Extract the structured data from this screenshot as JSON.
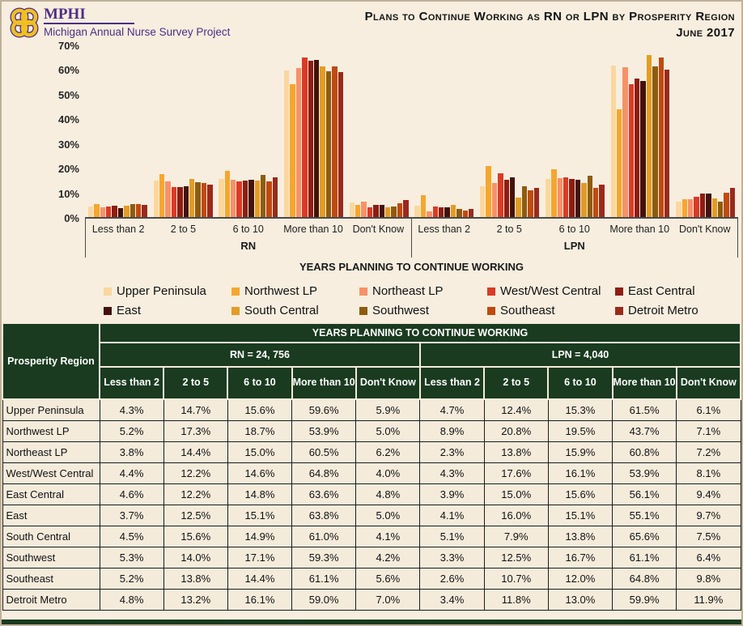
{
  "header": {
    "logo_acronym": "MPHI",
    "logo_subtitle": "Michigan Annual Nurse Survey Project",
    "title_line1": "Plans to Continue Working as RN or LPN by Prosperity Region",
    "title_line2": "June 2017"
  },
  "chart_data": {
    "type": "bar",
    "title": "Plans to Continue Working as RN or LPN by Prosperity Region, June 2017",
    "xlabel": "YEARS PLANNING TO CONTINUE WORKING",
    "ylabel": "",
    "ylim": [
      0,
      70
    ],
    "ytick_labels": [
      "70%",
      "60%",
      "50%",
      "40%",
      "30%",
      "20%",
      "10%",
      "0%"
    ],
    "grid": false,
    "legend_position": "bottom",
    "categories": [
      "Less than 2",
      "2 to 5",
      "6 to 10",
      "More than 10",
      "Don't Know"
    ],
    "sections": [
      {
        "label": "RN",
        "key": "rn"
      },
      {
        "label": "LPN",
        "key": "lpn"
      }
    ],
    "series": [
      {
        "name": "Upper Peninsula",
        "color": "#FBD79E",
        "rn": [
          4.3,
          14.7,
          15.6,
          59.6,
          5.9
        ],
        "lpn": [
          4.7,
          12.4,
          15.3,
          61.5,
          6.1
        ]
      },
      {
        "name": "Northwest LP",
        "color": "#F6A62E",
        "rn": [
          5.2,
          17.3,
          18.7,
          53.9,
          5.0
        ],
        "lpn": [
          8.9,
          20.8,
          19.5,
          43.7,
          7.1
        ]
      },
      {
        "name": "Northeast LP",
        "color": "#F79168",
        "rn": [
          3.8,
          14.4,
          15.0,
          60.5,
          6.2
        ],
        "lpn": [
          2.3,
          13.8,
          15.9,
          60.8,
          7.2
        ]
      },
      {
        "name": "West/West Central",
        "color": "#DA3B26",
        "rn": [
          4.4,
          12.2,
          14.6,
          64.8,
          4.0
        ],
        "lpn": [
          4.3,
          17.6,
          16.1,
          53.9,
          8.1
        ]
      },
      {
        "name": "East Central",
        "color": "#8E1D12",
        "rn": [
          4.6,
          12.2,
          14.8,
          63.6,
          4.8
        ],
        "lpn": [
          3.9,
          15.0,
          15.6,
          56.1,
          9.4
        ]
      },
      {
        "name": "East",
        "color": "#43120B",
        "rn": [
          3.7,
          12.5,
          15.1,
          63.8,
          5.0
        ],
        "lpn": [
          4.1,
          16.0,
          15.1,
          55.1,
          9.7
        ]
      },
      {
        "name": "South Central",
        "color": "#E39C24",
        "rn": [
          4.5,
          15.6,
          14.9,
          61.0,
          4.1
        ],
        "lpn": [
          5.1,
          7.9,
          13.8,
          65.6,
          7.5
        ]
      },
      {
        "name": "Southwest",
        "color": "#8E5C10",
        "rn": [
          5.3,
          14.0,
          17.1,
          59.3,
          4.2
        ],
        "lpn": [
          3.3,
          12.5,
          16.7,
          61.1,
          6.4
        ]
      },
      {
        "name": "Southeast",
        "color": "#C04A10",
        "rn": [
          5.2,
          13.8,
          14.4,
          61.1,
          5.6
        ],
        "lpn": [
          2.6,
          10.7,
          12.0,
          64.8,
          9.8
        ]
      },
      {
        "name": "Detroit Metro",
        "color": "#9A2A1C",
        "rn": [
          4.8,
          13.2,
          16.1,
          59.0,
          7.0
        ],
        "lpn": [
          3.4,
          11.8,
          13.0,
          59.9,
          11.9
        ]
      }
    ]
  },
  "table": {
    "region_header": "Prosperity Region",
    "years_header": "YEARS PLANNING TO CONTINUE WORKING",
    "rn_header": "RN = 24, 756",
    "lpn_header": "LPN = 4,040"
  }
}
